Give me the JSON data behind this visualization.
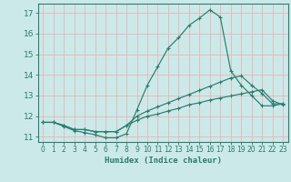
{
  "xlabel": "Humidex (Indice chaleur)",
  "background_color": "#cce9e9",
  "grid_color": "#e8b4b4",
  "line_color": "#2a7d6e",
  "xlim": [
    -0.5,
    23.5
  ],
  "ylim": [
    10.75,
    17.45
  ],
  "yticks": [
    11,
    12,
    13,
    14,
    15,
    16,
    17
  ],
  "xticks": [
    0,
    1,
    2,
    3,
    4,
    5,
    6,
    7,
    8,
    9,
    10,
    11,
    12,
    13,
    14,
    15,
    16,
    17,
    18,
    19,
    20,
    21,
    22,
    23
  ],
  "line1_x": [
    0,
    1,
    2,
    3,
    4,
    5,
    6,
    7,
    8,
    9,
    10,
    11,
    12,
    13,
    14,
    15,
    16,
    17,
    18,
    19,
    20,
    21,
    22,
    23
  ],
  "line1_y": [
    11.7,
    11.7,
    11.5,
    11.3,
    11.2,
    11.1,
    10.95,
    10.95,
    11.15,
    12.3,
    13.5,
    14.4,
    15.3,
    15.8,
    16.4,
    16.75,
    17.15,
    16.8,
    14.2,
    13.5,
    13.0,
    12.5,
    12.5,
    12.6
  ],
  "line2_x": [
    0,
    1,
    2,
    3,
    4,
    5,
    6,
    7,
    8,
    9,
    10,
    11,
    12,
    13,
    14,
    15,
    16,
    17,
    18,
    19,
    20,
    21,
    22,
    23
  ],
  "line2_y": [
    11.7,
    11.7,
    11.55,
    11.35,
    11.35,
    11.25,
    11.25,
    11.25,
    11.55,
    12.0,
    12.25,
    12.45,
    12.65,
    12.85,
    13.05,
    13.25,
    13.45,
    13.65,
    13.85,
    13.95,
    13.5,
    13.1,
    12.6,
    12.6
  ],
  "line3_x": [
    0,
    1,
    2,
    3,
    4,
    5,
    6,
    7,
    8,
    9,
    10,
    11,
    12,
    13,
    14,
    15,
    16,
    17,
    18,
    19,
    20,
    21,
    22,
    23
  ],
  "line3_y": [
    11.7,
    11.7,
    11.55,
    11.35,
    11.35,
    11.25,
    11.25,
    11.25,
    11.55,
    11.8,
    12.0,
    12.1,
    12.25,
    12.38,
    12.55,
    12.65,
    12.78,
    12.88,
    12.98,
    13.08,
    13.18,
    13.28,
    12.75,
    12.55
  ]
}
